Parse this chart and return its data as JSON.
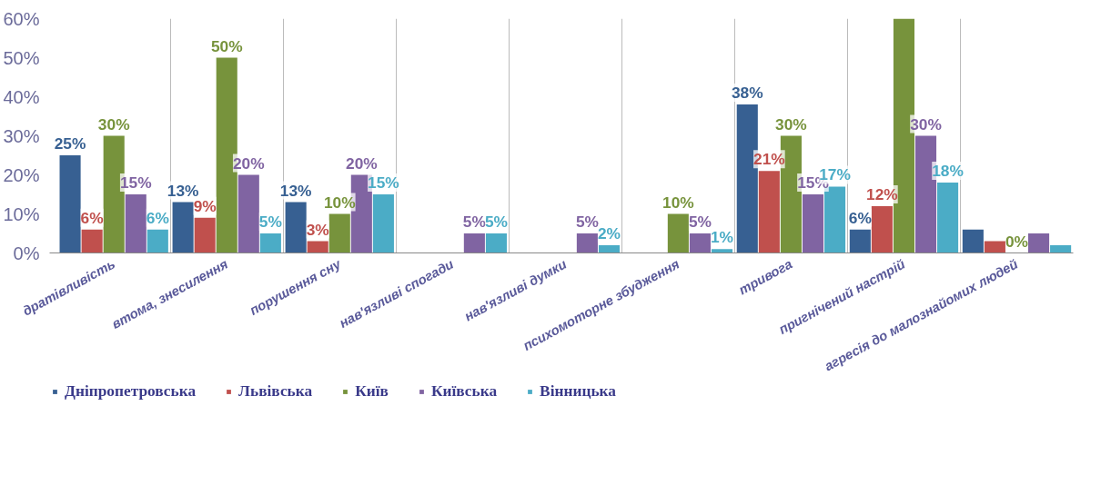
{
  "chart_data": {
    "type": "bar",
    "categories": [
      "дратівливість",
      "втома, знесилення",
      "порушення сну",
      "нав'язливі спогади",
      "нав'язливі думки",
      "психомоторне збудження",
      "тривога",
      "пригнічений настрій",
      "агресія до малознайомих людей"
    ],
    "series": [
      {
        "name": "Дніпропетровська",
        "color": "#376092",
        "values": [
          25,
          13,
          13,
          null,
          null,
          null,
          38,
          6,
          6
        ],
        "value_labels": [
          "25%",
          "13%",
          "13%",
          null,
          null,
          null,
          "38%",
          "6%",
          null
        ]
      },
      {
        "name": "Львівська",
        "color": "#c0504d",
        "values": [
          6,
          9,
          3,
          null,
          null,
          null,
          21,
          12,
          3
        ],
        "value_labels": [
          "6%",
          "9%",
          "3%",
          null,
          null,
          null,
          "21%",
          "12%",
          null
        ]
      },
      {
        "name": "Київ",
        "color": "#77933c",
        "values": [
          30,
          50,
          10,
          null,
          null,
          10,
          30,
          60,
          0
        ],
        "value_labels": [
          "30%",
          "50%",
          "10%",
          null,
          null,
          "10%",
          "30%",
          null,
          "0%"
        ]
      },
      {
        "name": "Київська",
        "color": "#8064a2",
        "values": [
          15,
          20,
          20,
          5,
          5,
          5,
          15,
          30,
          5
        ],
        "value_labels": [
          "15%",
          "20%",
          "20%",
          "5%",
          "5%",
          "5%",
          "15%",
          "30%",
          null
        ]
      },
      {
        "name": "Вінницька",
        "color": "#4bacc6",
        "values": [
          6,
          5,
          15,
          5,
          2,
          1,
          17,
          18,
          2
        ],
        "value_labels": [
          "6%",
          "5%",
          "15%",
          "5%",
          "2%",
          "1%",
          "17%",
          "18%",
          null
        ]
      }
    ],
    "ylim": [
      0,
      60
    ],
    "yticks": [
      {
        "value": 0,
        "label": "0%"
      },
      {
        "value": 10,
        "label": "10%"
      },
      {
        "value": 20,
        "label": "20%"
      },
      {
        "value": 30,
        "label": "30%"
      },
      {
        "value": 40,
        "label": "40%"
      },
      {
        "value": 50,
        "label": "50%"
      },
      {
        "value": 60,
        "label": "60%"
      }
    ],
    "grid": "x",
    "legend": "bottom"
  }
}
